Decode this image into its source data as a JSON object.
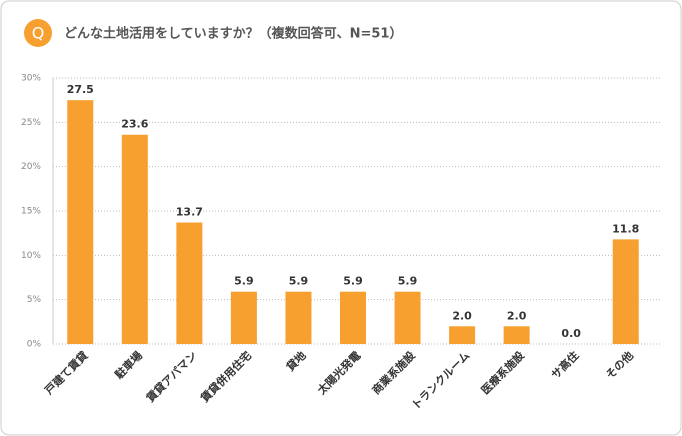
{
  "chart_data": {
    "type": "bar",
    "badge": "Q",
    "title": "どんな土地活用をしていますか？（複数回答可、N=51）",
    "categories": [
      "戸建て賃貸",
      "駐車場",
      "賃貸アパマン",
      "賃貸併用住宅",
      "貸地",
      "太陽光発電",
      "商業系施設",
      "トランクルーム",
      "医療系施設",
      "サ高住",
      "その他"
    ],
    "values": [
      27.5,
      23.6,
      13.7,
      5.9,
      5.9,
      5.9,
      5.9,
      2.0,
      2.0,
      0.0,
      11.8
    ],
    "value_labels": [
      "27.5",
      "23.6",
      "13.7",
      "5.9",
      "5.9",
      "5.9",
      "5.9",
      "2.0",
      "2.0",
      "0.0",
      "11.8"
    ],
    "color": "#f7a030",
    "ylim": [
      0,
      30
    ],
    "yticks": [
      {
        "value": 0,
        "label": "0%"
      },
      {
        "value": 5,
        "label": "5%"
      },
      {
        "value": 10,
        "label": "10%"
      },
      {
        "value": 15,
        "label": "15%"
      },
      {
        "value": 20,
        "label": "20%"
      },
      {
        "value": 25,
        "label": "25%"
      },
      {
        "value": 30,
        "label": "30%"
      }
    ],
    "grid": true
  }
}
